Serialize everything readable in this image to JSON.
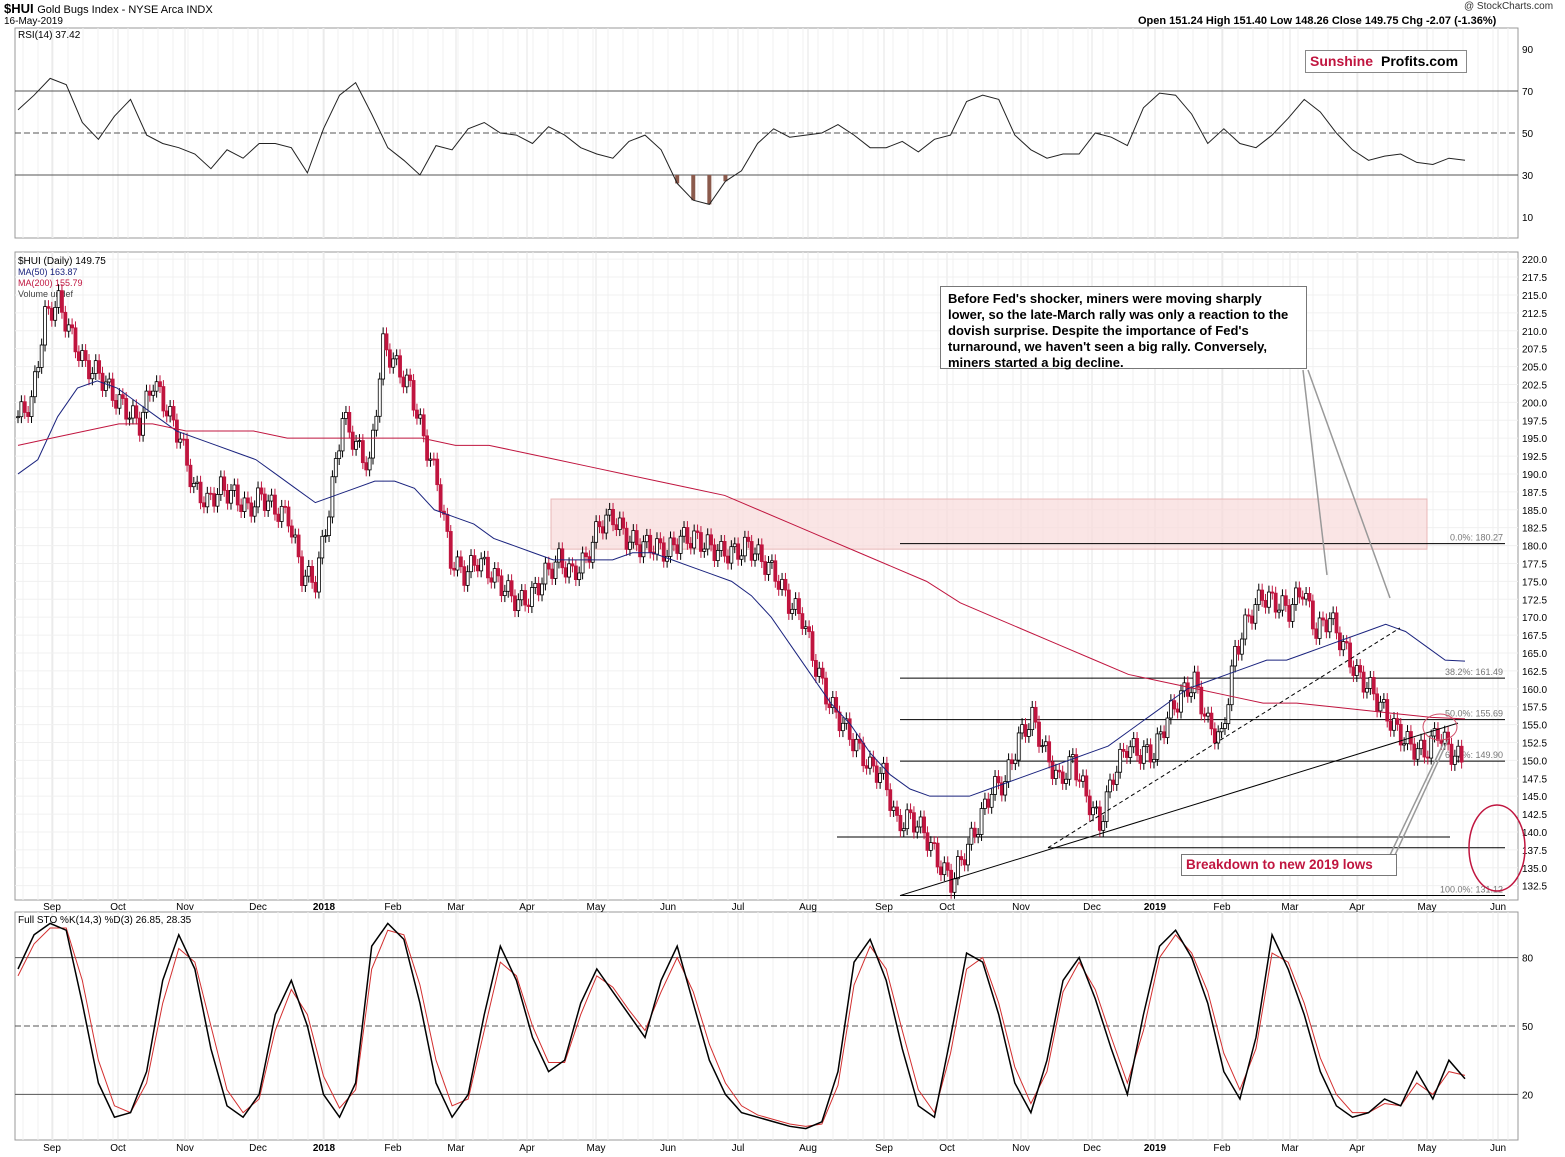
{
  "header": {
    "symbol": "$HUI",
    "name": "Gold Bugs Index - NYSE Arca INDX",
    "date": "16-May-2019",
    "credit": "@ StockCharts.com",
    "quote": "Open 151.24  High 151.40  Low 148.26  Close 149.75  Chg -2.07 (-1.36%)"
  },
  "logo": {
    "part1": "Sunshine",
    "part2": "Profits.com"
  },
  "annotations": {
    "callout": "Before Fed's shocker, miners were moving sharply lower, so the late-March rally was only a reaction to the dovish surprise. Despite the importance of Fed's turnaround, we haven't seen a big rally. Conversely, miners started a big decline.",
    "breakdown": "Breakdown to new 2019 lows"
  },
  "chart_data": [
    {
      "type": "line",
      "panel": "rsi",
      "legend": "RSI(14) 37.42",
      "y_ticks": [
        10,
        30,
        50,
        70,
        90
      ],
      "ylim": [
        0,
        100
      ],
      "ref_lines": [
        30,
        50,
        70
      ],
      "series": [
        {
          "name": "RSI(14)",
          "values": [
            61,
            68,
            76,
            73,
            55,
            47,
            58,
            66,
            49,
            45,
            43,
            40,
            33,
            42,
            38,
            45,
            45,
            43,
            31,
            52,
            68,
            74,
            59,
            43,
            37,
            30,
            44,
            42,
            52,
            55,
            50,
            49,
            45,
            53,
            49,
            43,
            40,
            38,
            46,
            49,
            42,
            26,
            18,
            16,
            27,
            32,
            45,
            52,
            48,
            49,
            50,
            54,
            49,
            43,
            43,
            46,
            41,
            47,
            49,
            65,
            68,
            66,
            49,
            42,
            38,
            40,
            40,
            50,
            48,
            44,
            62,
            69,
            68,
            59,
            45,
            52,
            45,
            43,
            49,
            57,
            66,
            60,
            50,
            42,
            37,
            39,
            40,
            36,
            35,
            38,
            37
          ]
        }
      ]
    },
    {
      "type": "candlestick",
      "panel": "price",
      "legend": [
        "$HUI (Daily) 149.75",
        "MA(50) 163.87",
        "MA(200) 155.79",
        "Volume undef"
      ],
      "y_ticks": [
        132.5,
        135,
        137.5,
        140,
        142.5,
        145,
        147.5,
        150,
        152.5,
        155,
        157.5,
        160,
        162.5,
        165,
        167.5,
        170,
        172.5,
        175,
        177.5,
        180,
        182.5,
        185,
        187.5,
        190,
        192.5,
        195,
        197.5,
        200,
        202.5,
        205,
        207.5,
        210,
        212.5,
        215,
        217.5,
        220
      ],
      "ylim": [
        130.5,
        221
      ],
      "x_labels": [
        "Sep",
        "Oct",
        "Nov",
        "Dec",
        "2018",
        "Feb",
        "Mar",
        "Apr",
        "May",
        "Jun",
        "Jul",
        "Aug",
        "Sep",
        "Oct",
        "Nov",
        "Dec",
        "2019",
        "Feb",
        "Mar",
        "Apr",
        "May",
        "Jun"
      ],
      "close": [
        198,
        200,
        212,
        214,
        209,
        205,
        204,
        201,
        199,
        197,
        203,
        199,
        195,
        188,
        186,
        188,
        187,
        185,
        187,
        185,
        184,
        176,
        175,
        185,
        198,
        194,
        191,
        208,
        205,
        202,
        195,
        189,
        178,
        176,
        178,
        176,
        174,
        172,
        173,
        176,
        178,
        176,
        178,
        183,
        184,
        181,
        180,
        180,
        179,
        181,
        181,
        180,
        179,
        179,
        180,
        178,
        176,
        172,
        170,
        163,
        158,
        155,
        152,
        149,
        148,
        141,
        142,
        140,
        136,
        133,
        137,
        141,
        146,
        147,
        153,
        156,
        151,
        147,
        150,
        145,
        141,
        148,
        152,
        151,
        151,
        156,
        159,
        161,
        155,
        153,
        165,
        170,
        173,
        172,
        171,
        174,
        168,
        170,
        166,
        162,
        160,
        157,
        154,
        152,
        151,
        154,
        151,
        149.75
      ],
      "ma50": [
        190,
        192,
        198,
        202,
        203,
        202,
        200,
        198,
        196,
        195,
        194,
        193,
        192,
        190,
        188,
        186,
        187,
        188,
        189,
        189,
        188,
        185,
        184,
        183,
        181,
        180,
        179,
        178,
        178,
        178,
        178,
        179,
        179,
        178,
        177,
        176,
        175,
        173,
        170,
        166,
        162,
        158,
        155,
        151,
        148,
        146,
        145,
        145,
        145,
        146,
        147,
        148,
        149,
        150,
        151,
        152,
        154,
        156,
        158,
        160,
        161,
        162,
        163,
        164,
        164,
        165,
        166,
        167,
        168,
        169,
        168,
        166,
        164,
        163.87
      ],
      "ma200": [
        194,
        195,
        196,
        197,
        197,
        196,
        196,
        196,
        195,
        195,
        195,
        195,
        195,
        194,
        194,
        193,
        192,
        191,
        190,
        189,
        188,
        187,
        185,
        183,
        181,
        179,
        177,
        175,
        172,
        170,
        168,
        166,
        164,
        162,
        161,
        160,
        159,
        158,
        158,
        157.5,
        157,
        156.5,
        156,
        155.79
      ],
      "levels": [
        {
          "label": "0.0%: 180.27",
          "value": 180.27
        },
        {
          "label": "38.2%: 161.49",
          "value": 161.49
        },
        {
          "label": "50.0%: 155.69",
          "value": 155.69
        },
        {
          "label": "61.8%: 149.90",
          "value": 149.9
        },
        {
          "label": "100.0%: 131.12",
          "value": 131.12
        }
      ]
    },
    {
      "type": "line",
      "panel": "stochastic",
      "legend": "Full STO %K(14,3) %D(3) 26.85, 28.35",
      "y_ticks": [
        20,
        50,
        80
      ],
      "ylim": [
        0,
        100
      ],
      "ref_lines": [
        20,
        50,
        80
      ],
      "series": [
        {
          "name": "%K",
          "values": [
            75,
            90,
            95,
            92,
            60,
            25,
            10,
            12,
            30,
            70,
            90,
            75,
            40,
            15,
            10,
            20,
            55,
            70,
            50,
            20,
            10,
            25,
            85,
            95,
            88,
            60,
            25,
            10,
            20,
            55,
            85,
            70,
            45,
            30,
            35,
            60,
            75,
            65,
            55,
            45,
            70,
            85,
            60,
            35,
            20,
            12,
            10,
            8,
            6,
            5,
            8,
            30,
            78,
            88,
            70,
            40,
            15,
            10,
            45,
            82,
            78,
            55,
            25,
            12,
            35,
            70,
            80,
            62,
            40,
            20,
            55,
            85,
            92,
            80,
            60,
            30,
            18,
            45,
            90,
            75,
            55,
            30,
            15,
            10,
            12,
            18,
            15,
            30,
            18,
            35,
            26.85
          ]
        },
        {
          "name": "%D",
          "values": [
            72,
            86,
            93,
            93,
            70,
            35,
            15,
            12,
            25,
            60,
            84,
            78,
            50,
            22,
            12,
            18,
            48,
            66,
            55,
            28,
            14,
            22,
            75,
            92,
            90,
            68,
            35,
            15,
            18,
            48,
            78,
            72,
            50,
            34,
            34,
            55,
            72,
            67,
            57,
            48,
            65,
            80,
            65,
            42,
            25,
            15,
            11,
            9,
            7,
            6,
            7,
            24,
            68,
            85,
            75,
            48,
            22,
            12,
            38,
            75,
            80,
            60,
            32,
            16,
            30,
            65,
            78,
            66,
            45,
            25,
            48,
            80,
            90,
            82,
            65,
            38,
            22,
            40,
            82,
            78,
            60,
            36,
            20,
            12,
            12,
            16,
            15,
            25,
            20,
            30,
            28.35
          ]
        }
      ]
    }
  ]
}
